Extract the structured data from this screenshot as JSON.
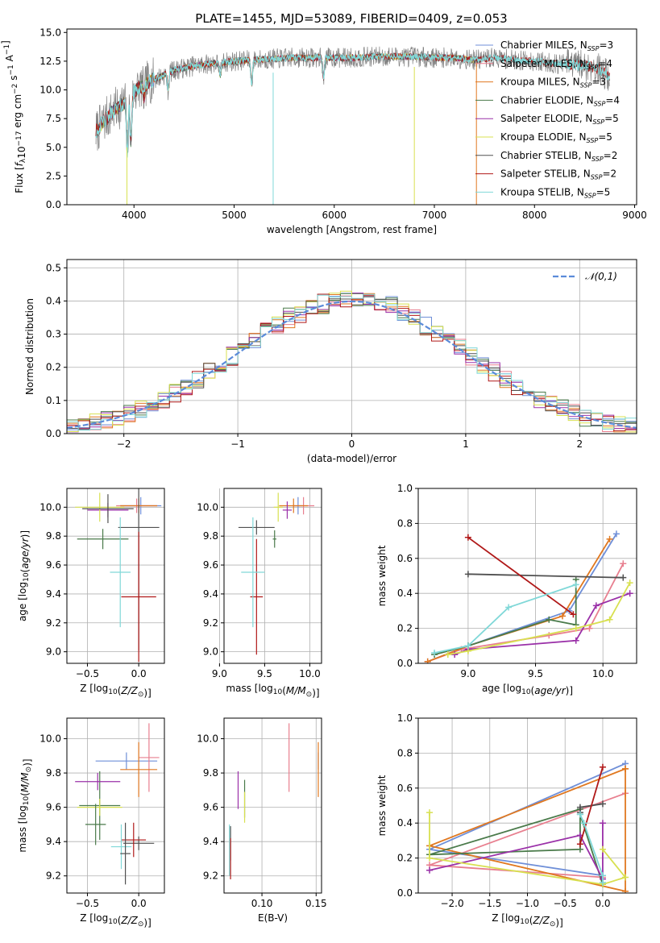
{
  "title": "PLATE=1455, MJD=53089, FIBERID=0409, z=0.053",
  "colors": {
    "chabrier_miles": "#6f8fd8",
    "salpeter_miles": "#e87f8f",
    "kroupa_miles": "#e07820",
    "chabrier_elodie": "#4a7a4a",
    "salpeter_elodie": "#9a30a8",
    "kroupa_elodie": "#d8e050",
    "chabrier_stelib": "#505050",
    "salpeter_stelib": "#b01818",
    "kroupa_stelib": "#80d8d8",
    "data": "#808080",
    "normal": "#5b8bd9",
    "grid": "#b0b0b0"
  },
  "chart_data": [
    {
      "id": "spectrum",
      "type": "line",
      "xlabel": "wavelength [Angstrom, rest frame]",
      "ylabel": "Flux [f_λ 10^-17 erg cm^-2 s^-1 A^-1]",
      "xlim": [
        3330,
        9020
      ],
      "ylim": [
        0,
        15.3
      ],
      "xticks": [
        "4000",
        "5000",
        "6000",
        "7000",
        "8000",
        "9000"
      ],
      "yticks": [
        "0.0",
        "2.5",
        "5.0",
        "7.5",
        "10.0",
        "12.5",
        "15.0"
      ],
      "legend_position": "right",
      "legend": [
        {
          "name": "Chabrier MILES",
          "nssp": "3",
          "color_key": "chabrier_miles"
        },
        {
          "name": "Salpeter MILES",
          "nssp": "4",
          "color_key": "salpeter_miles"
        },
        {
          "name": "Kroupa MILES",
          "nssp": "3",
          "color_key": "kroupa_miles"
        },
        {
          "name": "Chabrier ELODIE",
          "nssp": "4",
          "color_key": "chabrier_elodie"
        },
        {
          "name": "Salpeter ELODIE",
          "nssp": "5",
          "color_key": "salpeter_elodie"
        },
        {
          "name": "Kroupa ELODIE",
          "nssp": "5",
          "color_key": "kroupa_elodie"
        },
        {
          "name": "Chabrier STELIB",
          "nssp": "2",
          "color_key": "chabrier_stelib"
        },
        {
          "name": "Salpeter STELIB",
          "nssp": "2",
          "color_key": "salpeter_stelib"
        },
        {
          "name": "Kroupa STELIB",
          "nssp": "5",
          "color_key": "kroupa_stelib"
        }
      ],
      "continuum": {
        "x": [
          3620,
          3700,
          3800,
          3900,
          4000,
          4100,
          4200,
          4300,
          4400,
          4600,
          4800,
          5000,
          5200,
          5400,
          5600,
          5800,
          6000,
          6200,
          6400,
          6600,
          6800,
          7000,
          7200,
          7400,
          7600,
          7800,
          8000,
          8200,
          8400,
          8600,
          8750
        ],
        "y": [
          6.3,
          7.3,
          8.2,
          8.8,
          9.8,
          10.5,
          10.9,
          11.3,
          11.7,
          12.1,
          12.3,
          12.5,
          12.6,
          12.7,
          12.8,
          12.8,
          12.8,
          12.8,
          12.9,
          12.9,
          12.9,
          12.8,
          12.8,
          12.6,
          12.8,
          12.6,
          12.5,
          12.3,
          12.2,
          12.0,
          11.2
        ]
      },
      "data_range": [
        3620,
        8750
      ],
      "model_range": [
        3620,
        7400
      ],
      "stelib_range": [
        3620,
        8750
      ],
      "absorptions": [
        {
          "x": 3934,
          "depth": 4.5
        },
        {
          "x": 3969,
          "depth": 4.0
        },
        {
          "x": 4102,
          "depth": 1.2
        },
        {
          "x": 4340,
          "depth": 1.5
        },
        {
          "x": 4861,
          "depth": 1.1
        },
        {
          "x": 5175,
          "depth": 2.0
        },
        {
          "x": 5893,
          "depth": 1.8
        }
      ],
      "spikes": [
        {
          "x": 3930,
          "y0": 0.0,
          "y1": 5.0,
          "color_key": "kroupa_elodie"
        },
        {
          "x": 5390,
          "y0": 0.0,
          "y1": 11.5,
          "color_key": "kroupa_stelib"
        },
        {
          "x": 6800,
          "y0": 0.0,
          "y1": 12.0,
          "color_key": "kroupa_elodie"
        },
        {
          "x": 7420,
          "y0": 0.0,
          "y1": 12.4,
          "color_key": "kroupa_miles"
        }
      ]
    },
    {
      "id": "residuals",
      "type": "histogram",
      "xlabel": "(data-model)/error",
      "ylabel": "Normed distribution",
      "xlim": [
        -2.5,
        2.5
      ],
      "ylim": [
        0,
        0.525
      ],
      "xticks": [
        "−2",
        "−1",
        "0",
        "1",
        "2"
      ],
      "yticks": [
        "0.0",
        "0.1",
        "0.2",
        "0.3",
        "0.4",
        "0.5"
      ],
      "bin_width": 0.1,
      "legend_label": "𝒩(0,1)",
      "legend_position": "top-right",
      "hist_keys": [
        "chabrier_miles",
        "salpeter_miles",
        "kroupa_miles",
        "chabrier_elodie",
        "salpeter_elodie",
        "kroupa_elodie",
        "chabrier_stelib",
        "salpeter_stelib",
        "kroupa_stelib"
      ]
    },
    {
      "id": "age_vs_Z",
      "type": "errorbar",
      "xlabel": "Z [log10(Z/Z⊙)]",
      "ylabel": "age [log10(age/yr)]",
      "xlim": [
        -0.7,
        0.25
      ],
      "ylim": [
        8.92,
        10.13
      ],
      "xticks": [
        "−0.5",
        "0.0"
      ],
      "yticks": [
        "9.0",
        "9.2",
        "9.4",
        "9.6",
        "9.8",
        "10.0"
      ],
      "points": [
        {
          "color_key": "chabrier_miles",
          "x": 0.02,
          "xerr": 0.2,
          "y": 10.01,
          "yerr": 0.06
        },
        {
          "color_key": "salpeter_miles",
          "x": -0.02,
          "xerr": 0.2,
          "y": 10.01,
          "yerr": 0.05
        },
        {
          "color_key": "kroupa_miles",
          "x": 0.0,
          "xerr": 0.18,
          "y": 10.01,
          "yerr": 0.05
        },
        {
          "color_key": "chabrier_elodie",
          "x": -0.35,
          "xerr": 0.25,
          "y": 9.78,
          "yerr": 0.07
        },
        {
          "color_key": "salpeter_elodie",
          "x": -0.3,
          "xerr": 0.2,
          "y": 9.98,
          "yerr": 0.05
        },
        {
          "color_key": "kroupa_elodie",
          "x": -0.38,
          "xerr": 0.24,
          "y": 10.0,
          "yerr": 0.1
        },
        {
          "color_key": "chabrier_stelib",
          "x": 0.0,
          "xerr": 0.2,
          "y": 9.86,
          "yerr": 0.85
        },
        {
          "color_key": "salpeter_stelib",
          "x": 0.0,
          "xerr": 0.17,
          "y": 9.38,
          "yerr": 0.45
        },
        {
          "color_key": "kroupa_stelib",
          "x": -0.18,
          "xerr": 0.1,
          "y": 9.55,
          "yerr": 0.38
        },
        {
          "color_key": "chabrier_stelib",
          "x": -0.3,
          "xerr": 0.25,
          "y": 9.99,
          "yerr": 0.1
        }
      ]
    },
    {
      "id": "age_vs_mass",
      "type": "errorbar",
      "xlabel": "mass [log10(M/M⊙)]",
      "ylabel": "",
      "xlim": [
        9.05,
        10.13
      ],
      "ylim": [
        8.92,
        10.13
      ],
      "xticks": [
        "9.0",
        "9.5",
        "10.0"
      ],
      "yticks": [
        "9.0",
        "9.2",
        "9.4",
        "9.6",
        "9.8",
        "10.0"
      ],
      "points": [
        {
          "color_key": "chabrier_miles",
          "x": 9.87,
          "xerr": 0.05,
          "y": 10.01,
          "yerr": 0.06
        },
        {
          "color_key": "salpeter_miles",
          "x": 9.93,
          "xerr": 0.12,
          "y": 10.01,
          "yerr": 0.06
        },
        {
          "color_key": "kroupa_miles",
          "x": 9.82,
          "xerr": 0.16,
          "y": 10.01,
          "yerr": 0.05
        },
        {
          "color_key": "chabrier_elodie",
          "x": 9.61,
          "xerr": 0.02,
          "y": 9.78,
          "yerr": 0.06
        },
        {
          "color_key": "salpeter_elodie",
          "x": 9.75,
          "xerr": 0.05,
          "y": 9.98,
          "yerr": 0.06
        },
        {
          "color_key": "kroupa_elodie",
          "x": 9.65,
          "xerr": 0.05,
          "y": 10.0,
          "yerr": 0.1
        },
        {
          "color_key": "chabrier_stelib",
          "x": 9.41,
          "xerr": 0.2,
          "y": 9.86,
          "yerr": 0.05
        },
        {
          "color_key": "salpeter_stelib",
          "x": 9.41,
          "xerr": 0.07,
          "y": 9.38,
          "yerr": 0.4
        },
        {
          "color_key": "kroupa_stelib",
          "x": 9.37,
          "xerr": 0.13,
          "y": 9.55,
          "yerr": 0.38
        }
      ]
    },
    {
      "id": "weight_vs_age",
      "type": "line",
      "xlabel": "age [log10(age/yr)]",
      "ylabel": "mass weight",
      "xlim": [
        8.63,
        10.25
      ],
      "ylim": [
        0,
        1.0
      ],
      "xticks": [
        "9.0",
        "9.5",
        "10.0"
      ],
      "yticks": [
        "0.0",
        "0.2",
        "0.4",
        "0.6",
        "0.8",
        "1.0"
      ],
      "series": [
        {
          "color_key": "chabrier_miles",
          "x": [
            8.7,
            9.0,
            9.75,
            10.1
          ],
          "y": [
            0.01,
            0.1,
            0.3,
            0.74
          ]
        },
        {
          "color_key": "salpeter_miles",
          "x": [
            8.7,
            8.95,
            9.6,
            9.9,
            10.15
          ],
          "y": [
            0.01,
            0.08,
            0.16,
            0.2,
            0.57
          ]
        },
        {
          "color_key": "kroupa_miles",
          "x": [
            8.7,
            9.0,
            9.7,
            10.05
          ],
          "y": [
            0.01,
            0.1,
            0.27,
            0.71
          ]
        },
        {
          "color_key": "chabrier_elodie",
          "x": [
            8.75,
            9.0,
            9.6,
            9.8,
            9.8
          ],
          "y": [
            0.05,
            0.1,
            0.25,
            0.22,
            0.48
          ]
        },
        {
          "color_key": "salpeter_elodie",
          "x": [
            8.9,
            9.0,
            9.8,
            9.95,
            10.2
          ],
          "y": [
            0.05,
            0.08,
            0.13,
            0.33,
            0.4
          ]
        },
        {
          "color_key": "kroupa_elodie",
          "x": [
            8.85,
            9.0,
            9.8,
            10.05,
            10.2
          ],
          "y": [
            0.05,
            0.07,
            0.2,
            0.25,
            0.46
          ]
        },
        {
          "color_key": "chabrier_stelib",
          "x": [
            9.0,
            10.15
          ],
          "y": [
            0.51,
            0.49
          ]
        },
        {
          "color_key": "salpeter_stelib",
          "x": [
            9.0,
            9.78
          ],
          "y": [
            0.72,
            0.28
          ]
        },
        {
          "color_key": "kroupa_stelib",
          "x": [
            8.75,
            9.0,
            9.3,
            9.8
          ],
          "y": [
            0.06,
            0.1,
            0.32,
            0.45
          ]
        }
      ]
    },
    {
      "id": "mass_vs_Z",
      "type": "errorbar",
      "xlabel": "Z [log10(Z/Z⊙)]",
      "ylabel": "mass [log10(M/M⊙)]",
      "xlim": [
        -0.7,
        0.25
      ],
      "ylim": [
        9.1,
        10.12
      ],
      "xticks": [
        "−0.5",
        "0.0"
      ],
      "yticks": [
        "9.2",
        "9.4",
        "9.6",
        "9.8",
        "10.0"
      ],
      "points": [
        {
          "color_key": "chabrier_miles",
          "x": -0.12,
          "xerr": 0.3,
          "y": 9.87,
          "yerr": 0.05
        },
        {
          "color_key": "salpeter_miles",
          "x": 0.1,
          "xerr": 0.1,
          "y": 9.89,
          "yerr": 0.2
        },
        {
          "color_key": "kroupa_miles",
          "x": 0.0,
          "xerr": 0.18,
          "y": 9.82,
          "yerr": 0.16
        },
        {
          "color_key": "chabrier_elodie",
          "x": -0.38,
          "xerr": 0.2,
          "y": 9.61,
          "yerr": 0.2
        },
        {
          "color_key": "salpeter_elodie",
          "x": -0.4,
          "xerr": 0.22,
          "y": 9.75,
          "yerr": 0.05
        },
        {
          "color_key": "kroupa_elodie",
          "x": -0.38,
          "xerr": 0.22,
          "y": 9.6,
          "yerr": 0.05
        },
        {
          "color_key": "chabrier_stelib",
          "x": 0.0,
          "xerr": 0.15,
          "y": 9.39,
          "yerr": 0.04
        },
        {
          "color_key": "salpeter_stelib",
          "x": -0.05,
          "xerr": 0.12,
          "y": 9.41,
          "yerr": 0.1
        },
        {
          "color_key": "kroupa_stelib",
          "x": -0.17,
          "xerr": 0.1,
          "y": 9.37,
          "yerr": 0.13
        },
        {
          "color_key": "chabrier_stelib",
          "x": -0.13,
          "xerr": 0.05,
          "y": 9.33,
          "yerr": 0.18
        },
        {
          "color_key": "chabrier_elodie",
          "x": -0.42,
          "xerr": 0.1,
          "y": 9.5,
          "yerr": 0.12
        }
      ]
    },
    {
      "id": "mass_vs_ebv",
      "type": "errorbar",
      "xlabel": "E(B-V)",
      "ylabel": "",
      "xlim": [
        0.065,
        0.155
      ],
      "ylim": [
        9.1,
        10.12
      ],
      "xticks": [
        "0.10",
        "0.15"
      ],
      "yticks": [
        "9.2",
        "9.4",
        "9.6",
        "9.8",
        "10.0"
      ],
      "points": [
        {
          "color_key": "chabrier_miles",
          "x": 0.152,
          "xerr": 0,
          "y": 9.87,
          "yerr": 0.05
        },
        {
          "color_key": "salpeter_miles",
          "x": 0.125,
          "xerr": 0,
          "y": 9.89,
          "yerr": 0.2
        },
        {
          "color_key": "kroupa_miles",
          "x": 0.152,
          "xerr": 0,
          "y": 9.82,
          "yerr": 0.16
        },
        {
          "color_key": "chabrier_elodie",
          "x": 0.084,
          "xerr": 0,
          "y": 9.65,
          "yerr": 0.11
        },
        {
          "color_key": "salpeter_elodie",
          "x": 0.078,
          "xerr": 0,
          "y": 9.7,
          "yerr": 0.11
        },
        {
          "color_key": "kroupa_elodie",
          "x": 0.084,
          "xerr": 0,
          "y": 9.6,
          "yerr": 0.09
        },
        {
          "color_key": "chabrier_stelib",
          "x": 0.071,
          "xerr": 0,
          "y": 9.39,
          "yerr": 0.1
        },
        {
          "color_key": "kroupa_stelib",
          "x": 0.07,
          "xerr": 0,
          "y": 9.35,
          "yerr": 0.15
        },
        {
          "color_key": "salpeter_stelib",
          "x": 0.071,
          "xerr": 0,
          "y": 9.3,
          "yerr": 0.12
        }
      ]
    },
    {
      "id": "weight_vs_Z",
      "type": "line",
      "xlabel": "Z [log10(Z/Z⊙)]",
      "ylabel": "mass weight",
      "xlim": [
        -2.45,
        0.45
      ],
      "ylim": [
        0,
        1.0
      ],
      "xticks": [
        "−2.0",
        "−1.5",
        "−1.0",
        "−0.5",
        "0.0"
      ],
      "yticks": [
        "0.0",
        "0.2",
        "0.4",
        "0.6",
        "0.8",
        "1.0"
      ],
      "series": [
        {
          "color_key": "chabrier_miles",
          "x": [
            0.3,
            -2.3,
            0.0
          ],
          "y": [
            0.74,
            0.25,
            0.1
          ]
        },
        {
          "color_key": "salpeter_miles",
          "x": [
            0.3,
            0.3,
            -2.3,
            0.0
          ],
          "y": [
            0.57,
            0.57,
            0.16,
            0.09
          ]
        },
        {
          "color_key": "kroupa_miles",
          "x": [
            0.3,
            -2.3,
            0.3,
            0.3
          ],
          "y": [
            0.71,
            0.27,
            0.01,
            0.71
          ]
        },
        {
          "color_key": "chabrier_elodie",
          "x": [
            -0.3,
            -2.3,
            -0.3,
            -0.3,
            0.0
          ],
          "y": [
            0.48,
            0.22,
            0.25,
            0.45,
            0.05
          ]
        },
        {
          "color_key": "salpeter_elodie",
          "x": [
            -2.3,
            -0.3,
            0.0,
            0.0
          ],
          "y": [
            0.13,
            0.33,
            0.08,
            0.4
          ]
        },
        {
          "color_key": "kroupa_elodie",
          "x": [
            -2.3,
            -2.3,
            0.0,
            0.3,
            0.0
          ],
          "y": [
            0.46,
            0.2,
            0.05,
            0.09,
            0.25
          ]
        },
        {
          "color_key": "chabrier_stelib",
          "x": [
            0.0,
            -0.3,
            -0.3
          ],
          "y": [
            0.51,
            0.49,
            0.46
          ]
        },
        {
          "color_key": "salpeter_stelib",
          "x": [
            0.0,
            -0.3
          ],
          "y": [
            0.72,
            0.28
          ]
        },
        {
          "color_key": "kroupa_stelib",
          "x": [
            -0.3,
            -0.25,
            0.0,
            0.0
          ],
          "y": [
            0.45,
            0.4,
            0.1,
            0.06
          ]
        }
      ]
    }
  ]
}
